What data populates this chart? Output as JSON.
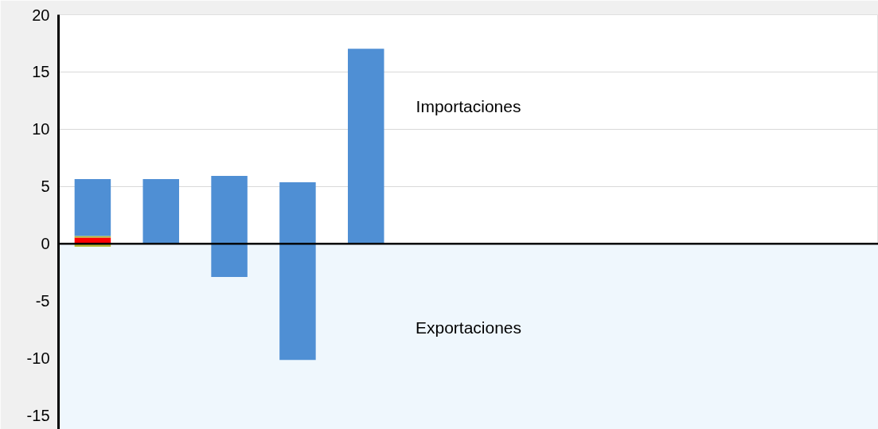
{
  "chart_data": {
    "type": "bar",
    "stacked": true,
    "categories": [
      null,
      null,
      null,
      null,
      null,
      null,
      null,
      null,
      null,
      null,
      null,
      null
    ],
    "series": [
      {
        "color": "#ff0000",
        "values": [
          0.55,
          null,
          null,
          null,
          null,
          null,
          null,
          null,
          null,
          null,
          null,
          null
        ]
      },
      {
        "color": "#b5b935",
        "values": [
          0.14,
          null,
          null,
          null,
          null,
          null,
          null,
          null,
          null,
          null,
          null,
          null
        ]
      },
      {
        "color": "#b5b935",
        "values": [
          -0.25,
          null,
          null,
          null,
          null,
          null,
          null,
          null,
          null,
          null,
          null,
          null
        ]
      },
      {
        "color": "#4f8fd4",
        "values": [
          4.97,
          5.66,
          5.93,
          5.38,
          17.03,
          null,
          null,
          null,
          null,
          null,
          null,
          null
        ]
      },
      {
        "color": "#4f8fd4",
        "values": [
          null,
          null,
          -2.9,
          -10.14,
          null,
          null,
          null,
          null,
          null,
          null,
          null,
          null
        ]
      }
    ],
    "ylim": [
      -16.2,
      20
    ],
    "yticks": [
      -15,
      -10,
      -5,
      0,
      5,
      10,
      15,
      20
    ],
    "grid": "y",
    "tick_labels": "y",
    "bands": [
      {
        "axis": "y",
        "from": -16.2,
        "to": 0,
        "color": "#eff7fd"
      }
    ],
    "ref_lines": [
      {
        "axis": "y",
        "value": 0,
        "color": "#000000"
      }
    ],
    "annotations": [
      "Importaciones",
      "Exportaciones"
    ]
  }
}
